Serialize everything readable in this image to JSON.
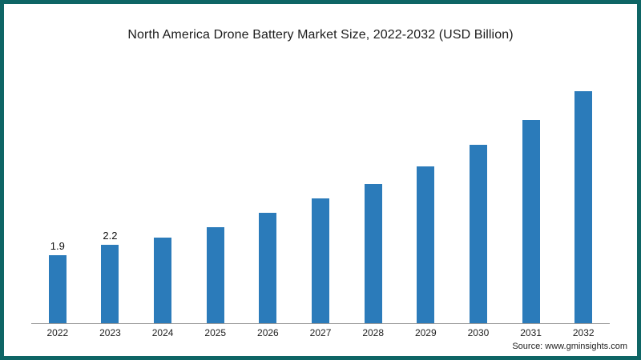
{
  "frame": {
    "border_color": "#0e6565",
    "background_color": "#ffffff"
  },
  "chart": {
    "title": "North America Drone Battery Market Size, 2022-2032 (USD Billion)",
    "source": "Source: www.gminsights.com",
    "bar_color": "#2b7bba"
  },
  "chart_data": {
    "type": "bar",
    "title": "North America Drone Battery Market Size, 2022-2032 (USD Billion)",
    "categories": [
      "2022",
      "2023",
      "2024",
      "2025",
      "2026",
      "2027",
      "2028",
      "2029",
      "2030",
      "2031",
      "2032"
    ],
    "values": [
      1.9,
      2.2,
      2.4,
      2.7,
      3.1,
      3.5,
      3.9,
      4.4,
      5.0,
      5.7,
      6.5
    ],
    "data_labels": [
      "1.9",
      "2.2",
      "",
      "",
      "",
      "",
      "",
      "",
      "",
      "",
      ""
    ],
    "xlabel": "",
    "ylabel": "",
    "ylim": [
      0,
      7
    ],
    "grid": false,
    "legend": false,
    "bar_color": "#2b7bba",
    "source": "Source: www.gminsights.com"
  }
}
